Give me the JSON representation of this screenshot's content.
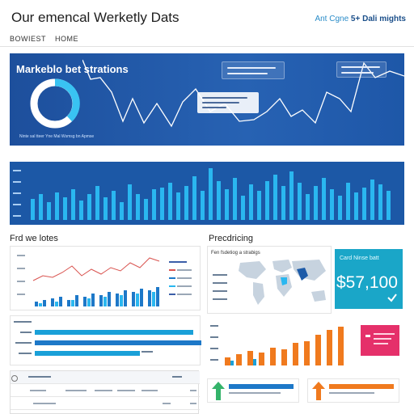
{
  "header": {
    "title": "Our emencal Werketly Dats",
    "brand_prefix": "Ant Cgne ",
    "brand_bold": "5+ Dali mights"
  },
  "nav": {
    "items": [
      "BOWIEST",
      "HOME"
    ]
  },
  "hero": {
    "title": "Markeblo bet strations",
    "caption": "Ninte sal tteer Yne Mal Wsmsg bn Apmse"
  },
  "sections": {
    "left_title": "Frd we lotes",
    "right_title": "Precdricing",
    "map_label": "Fen fsdetiog a strabigs"
  },
  "stat_card": {
    "label": "Card Ninse batt",
    "value": "$57,100"
  },
  "colors": {
    "hero_bg": "#2762b3",
    "bar_cyan": "#2ab7f0",
    "accent_orange": "#f07a1e",
    "accent_pink": "#e5306a",
    "stat_teal": "#1aa6c8",
    "line_red": "#d9534f"
  },
  "icons": [
    "donut-chart-icon",
    "world-map-icon",
    "check-icon",
    "gift-icon",
    "up-arrow-icon"
  ]
}
